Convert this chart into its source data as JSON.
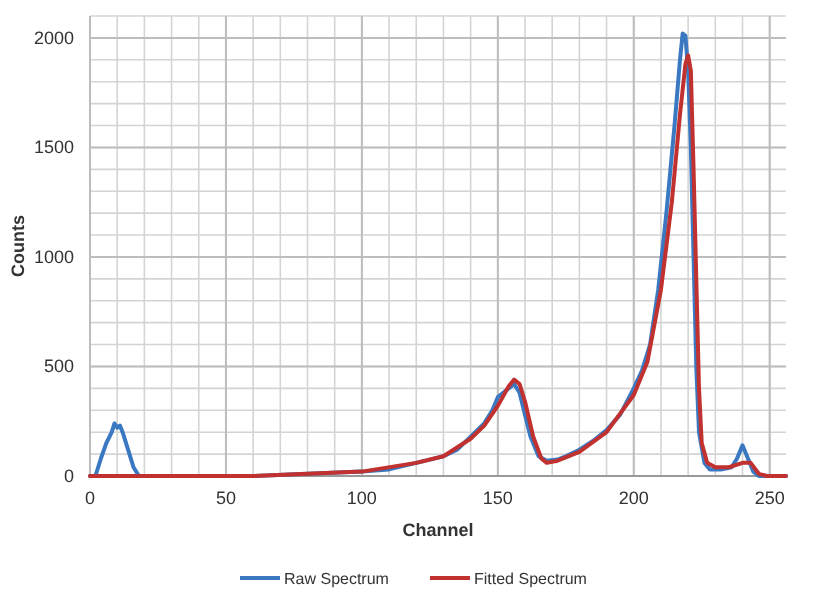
{
  "chart_data": {
    "type": "line",
    "xlabel": "Channel",
    "ylabel": "Counts",
    "xlim": [
      0,
      256
    ],
    "ylim": [
      0,
      2100
    ],
    "xticks": [
      0,
      50,
      100,
      150,
      200,
      250
    ],
    "yticks": [
      0,
      500,
      1000,
      1500,
      2000
    ],
    "grid": true,
    "legend": "bottom",
    "line_style": "solid",
    "series": [
      {
        "name": "Raw Spectrum",
        "color": "#3a78c2",
        "x": [
          0,
          2,
          4,
          6,
          8,
          9,
          10,
          11,
          12,
          14,
          16,
          18,
          20,
          40,
          60,
          80,
          100,
          110,
          120,
          125,
          130,
          135,
          140,
          145,
          148,
          150,
          152,
          154,
          156,
          158,
          160,
          162,
          165,
          168,
          172,
          175,
          180,
          185,
          190,
          195,
          200,
          203,
          206,
          209,
          212,
          215,
          217,
          218,
          219,
          220,
          221,
          222,
          223,
          224,
          226,
          228,
          232,
          236,
          238,
          240,
          242,
          244,
          246,
          250,
          256
        ],
        "values": [
          0,
          0,
          80,
          150,
          200,
          240,
          220,
          230,
          200,
          120,
          40,
          0,
          0,
          0,
          0,
          10,
          20,
          30,
          60,
          75,
          90,
          120,
          180,
          240,
          300,
          360,
          380,
          400,
          420,
          380,
          280,
          180,
          90,
          70,
          75,
          90,
          120,
          160,
          210,
          280,
          400,
          480,
          600,
          850,
          1200,
          1600,
          1900,
          2020,
          2010,
          1850,
          1500,
          1000,
          500,
          200,
          60,
          30,
          30,
          40,
          80,
          140,
          80,
          20,
          0,
          0,
          0
        ]
      },
      {
        "name": "Fitted Spectrum",
        "color": "#c0312f",
        "x": [
          0,
          20,
          60,
          80,
          100,
          120,
          130,
          140,
          145,
          150,
          154,
          156,
          158,
          160,
          163,
          166,
          168,
          172,
          180,
          190,
          200,
          205,
          210,
          214,
          217,
          219,
          220,
          221,
          222,
          223,
          224,
          225,
          227,
          230,
          235,
          240,
          243,
          246,
          249,
          256
        ],
        "values": [
          0,
          0,
          0,
          10,
          20,
          60,
          90,
          170,
          230,
          320,
          410,
          440,
          420,
          340,
          180,
          80,
          60,
          70,
          110,
          200,
          370,
          520,
          850,
          1250,
          1650,
          1880,
          1920,
          1850,
          1400,
          900,
          400,
          150,
          60,
          40,
          40,
          60,
          60,
          10,
          0,
          0
        ]
      }
    ]
  }
}
